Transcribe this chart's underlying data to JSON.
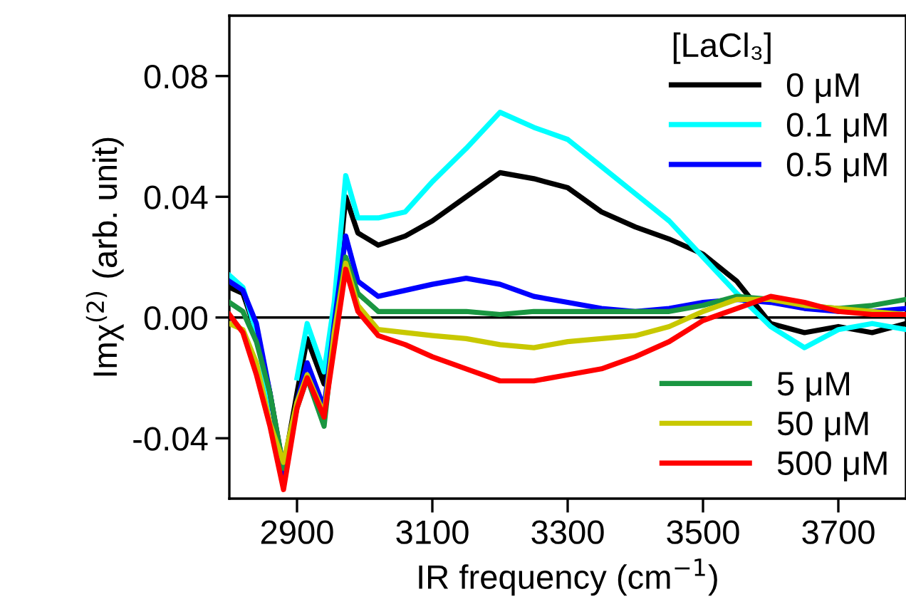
{
  "chart_data": {
    "type": "line",
    "xlabel": "IR frequency (cm$^{−1}$)",
    "ylabel": "Imχ$^{(2)}$ (arb. unit)",
    "legend_title": "[LaCl₃]",
    "x": [
      2800,
      2820,
      2840,
      2860,
      2880,
      2900,
      2915,
      2940,
      2955,
      2972,
      2990,
      3020,
      3060,
      3100,
      3150,
      3200,
      3250,
      3300,
      3350,
      3400,
      3450,
      3500,
      3550,
      3600,
      3650,
      3700,
      3750,
      3800
    ],
    "series": [
      {
        "name": "0 μM",
        "color": "#000000",
        "values": [
          0.01,
          0.008,
          -0.005,
          -0.025,
          -0.05,
          -0.025,
          -0.007,
          -0.022,
          0.0,
          0.04,
          0.028,
          0.024,
          0.027,
          0.032,
          0.04,
          0.048,
          0.046,
          0.043,
          0.035,
          0.03,
          0.026,
          0.021,
          0.012,
          -0.002,
          -0.005,
          -0.003,
          -0.005,
          -0.002
        ]
      },
      {
        "name": "0.1 μM",
        "color": "#00ffff",
        "values": [
          0.014,
          0.01,
          -0.005,
          -0.03,
          null,
          -0.02,
          -0.002,
          -0.018,
          0.005,
          0.047,
          0.033,
          0.033,
          0.035,
          0.045,
          0.056,
          0.068,
          0.063,
          0.059,
          0.05,
          0.041,
          0.032,
          0.02,
          0.008,
          -0.003,
          -0.01,
          -0.004,
          -0.002,
          -0.004
        ]
      },
      {
        "name": "0.5 μM",
        "color": "#0000ff",
        "values": [
          0.012,
          0.009,
          -0.002,
          -0.025,
          -0.052,
          -0.028,
          -0.015,
          -0.03,
          -0.002,
          0.027,
          0.012,
          0.007,
          0.009,
          0.011,
          0.013,
          0.011,
          0.007,
          0.005,
          0.003,
          0.002,
          0.003,
          0.005,
          0.006,
          0.005,
          0.003,
          0.002,
          0.002,
          0.003
        ]
      },
      {
        "name": "5 μM",
        "color": "#1a9641",
        "values": [
          0.005,
          0.002,
          -0.008,
          -0.025,
          -0.05,
          -0.03,
          -0.02,
          -0.036,
          -0.005,
          0.02,
          0.008,
          0.002,
          0.002,
          0.002,
          0.002,
          0.001,
          0.002,
          0.002,
          0.002,
          0.002,
          0.002,
          0.004,
          0.007,
          0.006,
          0.004,
          0.003,
          0.004,
          0.006
        ]
      },
      {
        "name": "50 μM",
        "color": "#c8c800",
        "values": [
          -0.002,
          -0.004,
          -0.015,
          -0.035,
          -0.048,
          -0.028,
          -0.019,
          -0.032,
          -0.005,
          0.018,
          0.004,
          -0.004,
          -0.005,
          -0.006,
          -0.007,
          -0.009,
          -0.01,
          -0.008,
          -0.007,
          -0.006,
          -0.003,
          0.002,
          0.006,
          0.006,
          0.004,
          0.003,
          0.002,
          0.001
        ]
      },
      {
        "name": "500 μM",
        "color": "#ff0000",
        "values": [
          0.001,
          -0.005,
          -0.019,
          -0.036,
          -0.057,
          -0.03,
          -0.02,
          -0.033,
          -0.01,
          0.016,
          0.002,
          -0.006,
          -0.009,
          -0.013,
          -0.017,
          -0.021,
          -0.021,
          -0.019,
          -0.017,
          -0.013,
          -0.008,
          -0.001,
          0.003,
          0.007,
          0.005,
          0.002,
          0.001,
          0.001
        ]
      }
    ],
    "xlim": [
      2800,
      3800
    ],
    "xticks": [
      2900,
      3100,
      3300,
      3500,
      3700
    ],
    "ylim": [
      -0.06,
      0.1
    ],
    "yticks": [
      {
        "value": -0.04,
        "label": "-0.04"
      },
      {
        "value": 0.0,
        "label": "0.00"
      },
      {
        "value": 0.04,
        "label": "0.04"
      },
      {
        "value": 0.08,
        "label": "0.08"
      }
    ],
    "ref_lines": [
      {
        "axis": "y",
        "value": 0,
        "color": "#000000"
      }
    ],
    "grid": false,
    "legend": "right",
    "line_style": "solid",
    "marker": "none"
  }
}
